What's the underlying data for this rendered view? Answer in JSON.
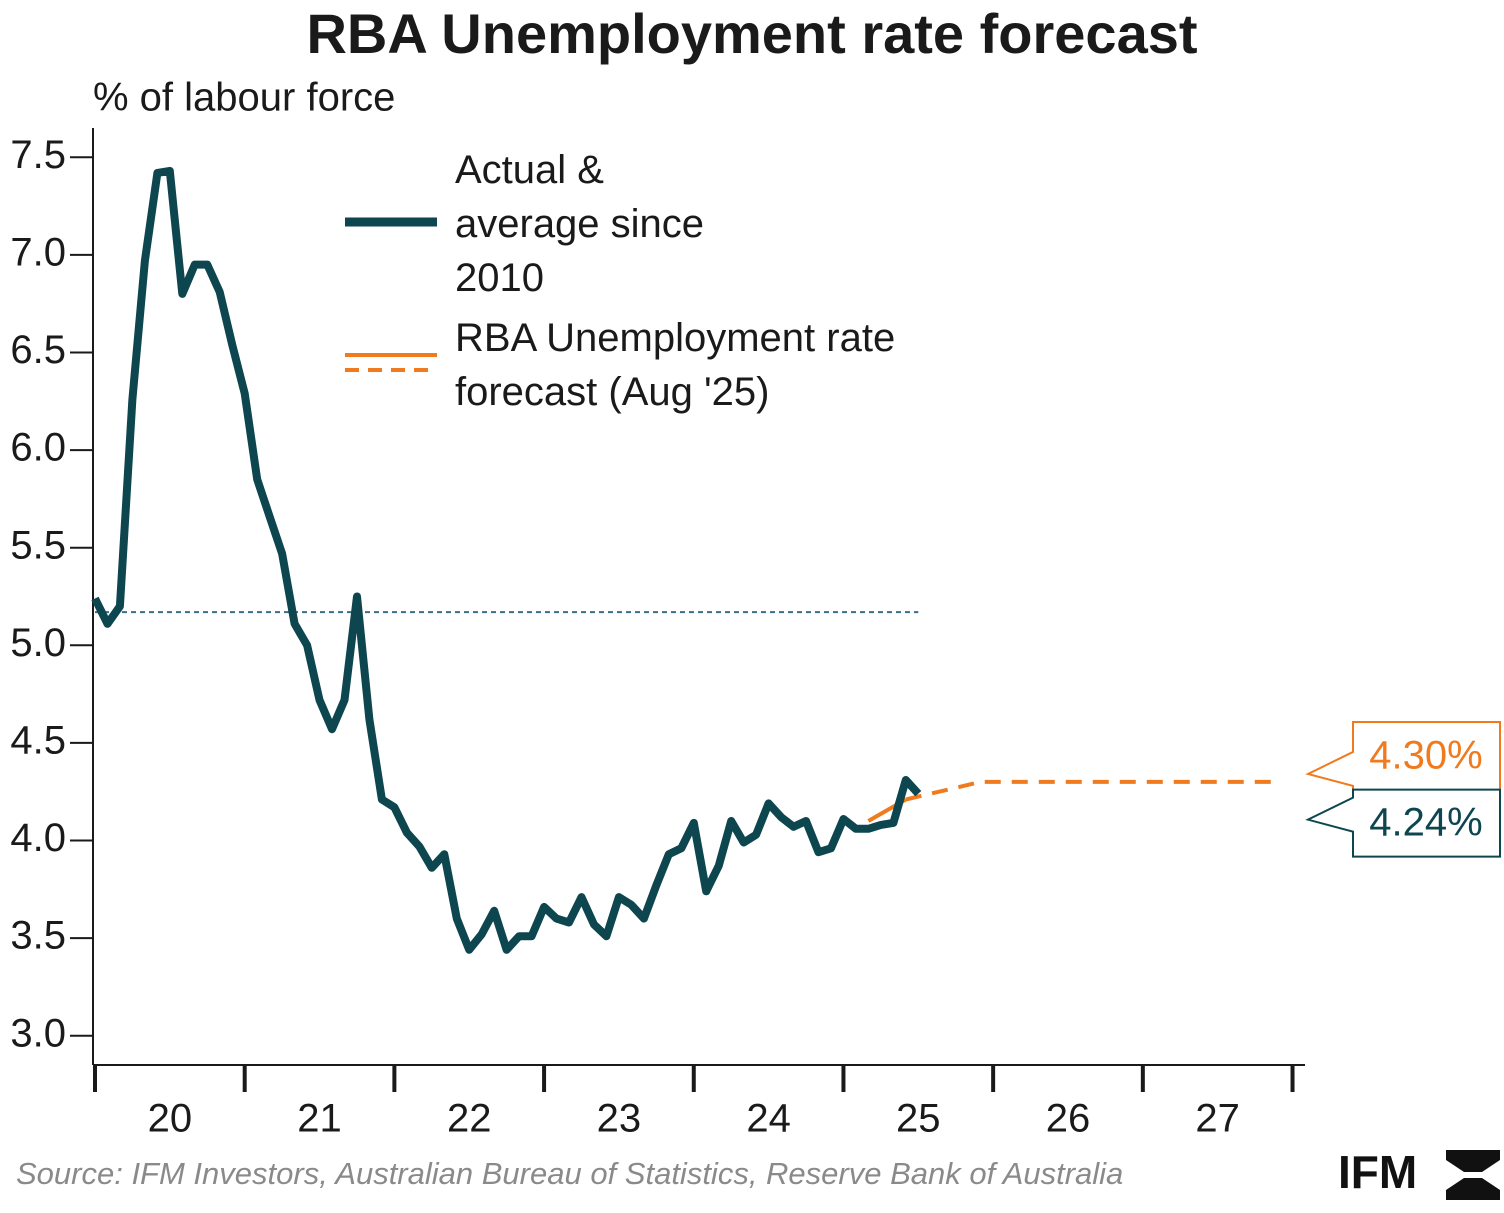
{
  "chart_data": {
    "type": "line",
    "title": "RBA Unemployment rate forecast",
    "y_label": "% of labour force",
    "source": "Source: IFM Investors, Australian Bureau of Statistics, Reserve Bank of Australia",
    "logo": "IFM",
    "xlim": [
      "2020-01",
      "2028-02"
    ],
    "xticks": [
      {
        "value": "2020-07",
        "label": "20"
      },
      {
        "value": "2021-07",
        "label": "21"
      },
      {
        "value": "2022-07",
        "label": "22"
      },
      {
        "value": "2023-07",
        "label": "23"
      },
      {
        "value": "2024-07",
        "label": "24"
      },
      {
        "value": "2025-07",
        "label": "25"
      },
      {
        "value": "2026-07",
        "label": "26"
      },
      {
        "value": "2027-07",
        "label": "27"
      }
    ],
    "x_tick_marks": [
      "2020-01",
      "2021-01",
      "2022-01",
      "2023-01",
      "2024-01",
      "2025-01",
      "2026-01",
      "2027-01",
      "2028-01"
    ],
    "ylim": [
      2.85,
      7.65
    ],
    "yticks": [
      {
        "value": 3,
        "label": "3.0"
      },
      3.5,
      {
        "value": 4,
        "label": "4.0"
      },
      4.5,
      {
        "value": 5,
        "label": "5.0"
      },
      5.5,
      {
        "value": 6,
        "label": "6.0"
      },
      6.5,
      {
        "value": 7,
        "label": "7.0"
      },
      7.5
    ],
    "grid": false,
    "series": [
      {
        "name": "Actual & average since 2010",
        "color": "#0e4650",
        "x": [
          "2020-01",
          "2020-02",
          "2020-03",
          "2020-04",
          "2020-05",
          "2020-06",
          "2020-07",
          "2020-08",
          "2020-09",
          "2020-10",
          "2020-11",
          "2020-12",
          "2021-01",
          "2021-02",
          "2021-03",
          "2021-04",
          "2021-05",
          "2021-06",
          "2021-07",
          "2021-08",
          "2021-09",
          "2021-10",
          "2021-11",
          "2021-12",
          "2022-01",
          "2022-02",
          "2022-03",
          "2022-04",
          "2022-05",
          "2022-06",
          "2022-07",
          "2022-08",
          "2022-09",
          "2022-10",
          "2022-11",
          "2022-12",
          "2023-01",
          "2023-02",
          "2023-03",
          "2023-04",
          "2023-05",
          "2023-06",
          "2023-07",
          "2023-08",
          "2023-09",
          "2023-10",
          "2023-11",
          "2023-12",
          "2024-01",
          "2024-02",
          "2024-03",
          "2024-04",
          "2024-05",
          "2024-06",
          "2024-07",
          "2024-08",
          "2024-09",
          "2024-10",
          "2024-11",
          "2024-12",
          "2025-01",
          "2025-02",
          "2025-03",
          "2025-04",
          "2025-05",
          "2025-06",
          "2025-07"
        ],
        "values": [
          5.24,
          5.11,
          5.2,
          6.26,
          6.97,
          7.42,
          7.43,
          6.8,
          6.95,
          6.95,
          6.81,
          6.54,
          6.29,
          5.85,
          5.66,
          5.47,
          5.11,
          5.0,
          4.72,
          4.57,
          4.72,
          5.25,
          4.62,
          4.21,
          4.17,
          4.04,
          3.97,
          3.86,
          3.93,
          3.6,
          3.44,
          3.52,
          3.64,
          3.44,
          3.51,
          3.51,
          3.66,
          3.6,
          3.58,
          3.71,
          3.57,
          3.51,
          3.71,
          3.67,
          3.6,
          3.77,
          3.93,
          3.96,
          4.09,
          3.74,
          3.87,
          4.1,
          3.99,
          4.03,
          4.19,
          4.12,
          4.07,
          4.1,
          3.94,
          3.96,
          4.11,
          4.06,
          4.06,
          4.08,
          4.09,
          4.31,
          4.24
        ],
        "end_label": "4.24%",
        "average": {
          "x": [
            "2020-01",
            "2025-07"
          ],
          "values": [
            5.17,
            5.17
          ]
        }
      },
      {
        "name": "RBA Unemployment rate forecast (Aug '25)",
        "color": "#f07a1e",
        "x": [
          "2025-03",
          "2025-06",
          "2025-12",
          "2026-06",
          "2026-12",
          "2027-06",
          "2027-12"
        ],
        "values": [
          4.1,
          4.21,
          4.3,
          4.3,
          4.3,
          4.3,
          4.3
        ],
        "dashed_from": "2025-06",
        "end_label": "4.30%"
      }
    ]
  }
}
